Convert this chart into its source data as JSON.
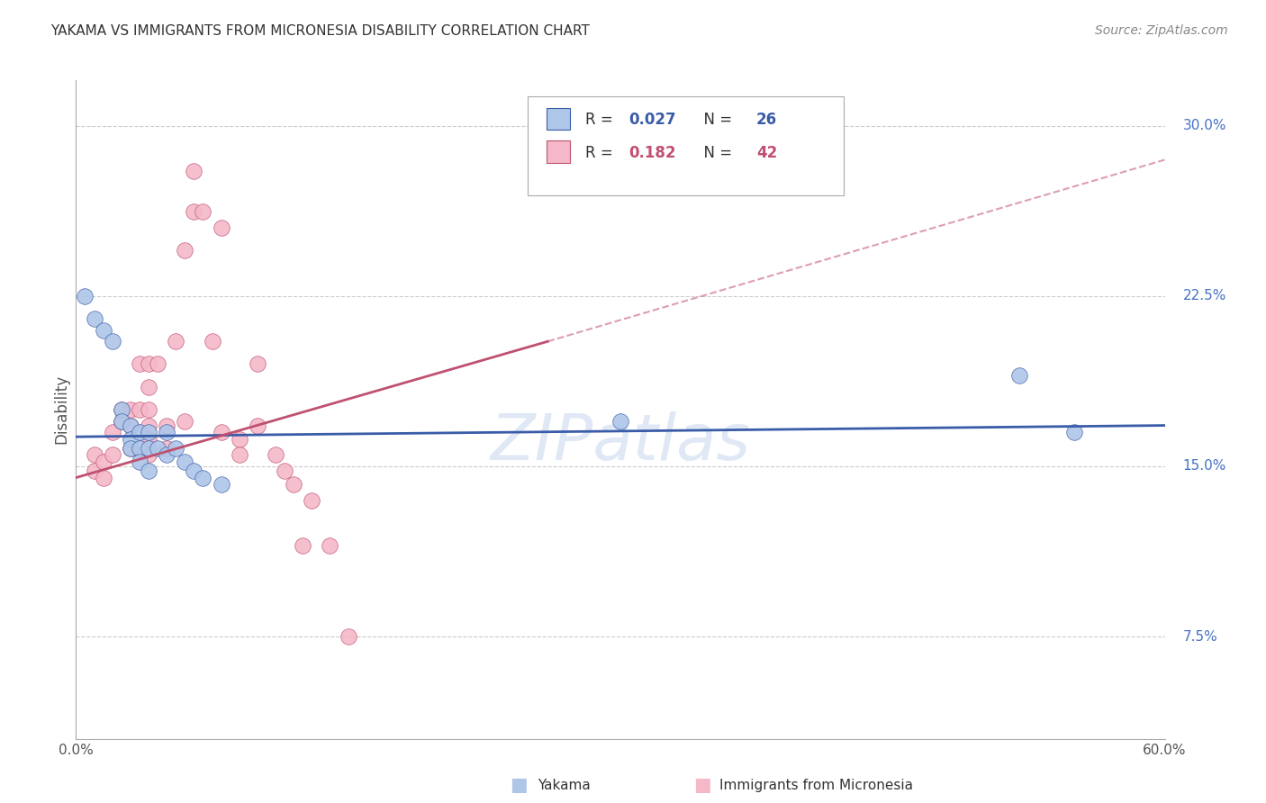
{
  "title": "YAKAMA VS IMMIGRANTS FROM MICRONESIA DISABILITY CORRELATION CHART",
  "source": "Source: ZipAtlas.com",
  "ylabel": "Disability",
  "ylabel_right_ticks": [
    "7.5%",
    "15.0%",
    "22.5%",
    "30.0%"
  ],
  "ylabel_right_values": [
    0.075,
    0.15,
    0.225,
    0.3
  ],
  "xlim": [
    0.0,
    0.6
  ],
  "ylim": [
    0.03,
    0.32
  ],
  "yakama_color": "#aec6e8",
  "micronesia_color": "#f4b8c8",
  "trendline_yakama_color": "#3a5ca8",
  "trendline_micronesia_color": "#c05070",
  "watermark": "ZIPatlas",
  "yakama_x": [
    0.005,
    0.01,
    0.015,
    0.02,
    0.025,
    0.025,
    0.03,
    0.03,
    0.03,
    0.035,
    0.035,
    0.035,
    0.04,
    0.04,
    0.04,
    0.045,
    0.05,
    0.05,
    0.055,
    0.06,
    0.065,
    0.07,
    0.08,
    0.52,
    0.55,
    0.3
  ],
  "yakama_y": [
    0.225,
    0.215,
    0.21,
    0.205,
    0.175,
    0.17,
    0.168,
    0.162,
    0.158,
    0.165,
    0.158,
    0.152,
    0.165,
    0.158,
    0.148,
    0.158,
    0.165,
    0.155,
    0.158,
    0.152,
    0.148,
    0.145,
    0.142,
    0.19,
    0.165,
    0.17
  ],
  "micronesia_x": [
    0.01,
    0.01,
    0.015,
    0.015,
    0.02,
    0.02,
    0.025,
    0.025,
    0.03,
    0.03,
    0.03,
    0.035,
    0.035,
    0.04,
    0.04,
    0.04,
    0.04,
    0.04,
    0.04,
    0.045,
    0.05,
    0.05,
    0.055,
    0.06,
    0.06,
    0.065,
    0.065,
    0.07,
    0.075,
    0.08,
    0.08,
    0.09,
    0.09,
    0.1,
    0.1,
    0.11,
    0.115,
    0.12,
    0.125,
    0.13,
    0.14,
    0.15
  ],
  "micronesia_y": [
    0.155,
    0.148,
    0.152,
    0.145,
    0.165,
    0.155,
    0.175,
    0.17,
    0.175,
    0.168,
    0.158,
    0.195,
    0.175,
    0.195,
    0.185,
    0.175,
    0.168,
    0.162,
    0.155,
    0.195,
    0.168,
    0.158,
    0.205,
    0.245,
    0.17,
    0.28,
    0.262,
    0.262,
    0.205,
    0.255,
    0.165,
    0.162,
    0.155,
    0.195,
    0.168,
    0.155,
    0.148,
    0.142,
    0.115,
    0.135,
    0.115,
    0.075
  ],
  "trendline_yakama_x0": 0.0,
  "trendline_yakama_y0": 0.163,
  "trendline_yakama_x1": 0.6,
  "trendline_yakama_y1": 0.168,
  "trendline_micronesia_x0": 0.0,
  "trendline_micronesia_y0": 0.145,
  "trendline_micronesia_x1": 0.26,
  "trendline_micronesia_y1": 0.205,
  "trendline_micronesia_dash_x0": 0.26,
  "trendline_micronesia_dash_y0": 0.205,
  "trendline_micronesia_dash_x1": 0.6,
  "trendline_micronesia_dash_y1": 0.285
}
